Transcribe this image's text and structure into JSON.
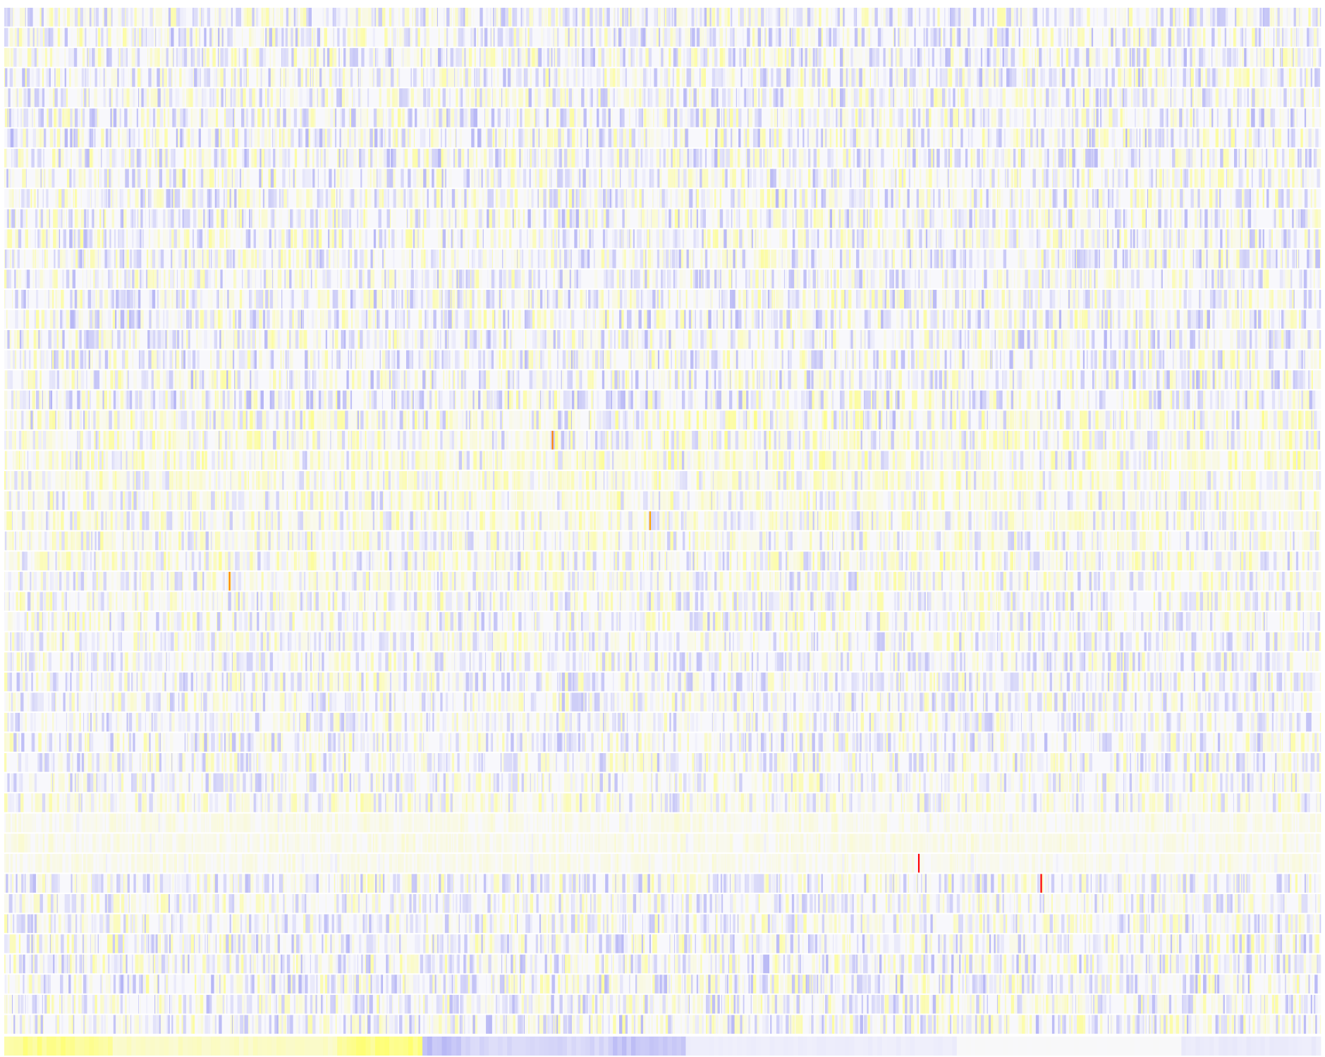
{
  "chart_data": {
    "type": "heatmap",
    "title": "",
    "xlabel": "",
    "ylabel": "",
    "row_count": 51,
    "column_count": 1700,
    "tick_labels": [],
    "legend": "none",
    "grid": false,
    "colors": {
      "low": "#8c8cf0",
      "mid": "#f8f8fc",
      "high": "#ffff66",
      "extreme_mid": "#ffa500",
      "extreme_high": "#ff0000",
      "background": "#ffffff"
    },
    "value_scale": [
      -1,
      1
    ],
    "row_intensity": [
      0.55,
      0.6,
      0.62,
      0.6,
      0.58,
      0.6,
      0.62,
      0.6,
      0.58,
      0.6,
      0.62,
      0.6,
      0.58,
      0.55,
      0.6,
      0.62,
      0.6,
      0.58,
      0.6,
      0.62,
      0.6,
      0.55,
      0.5,
      0.45,
      0.48,
      0.5,
      0.5,
      0.55,
      0.5,
      0.52,
      0.55,
      0.5,
      0.5,
      0.52,
      0.5,
      0.5,
      0.55,
      0.52,
      0.5,
      0.45,
      0.12,
      0.12,
      0.12,
      0.55,
      0.5,
      0.55,
      0.6,
      0.6,
      0.62,
      0.58,
      0.6
    ],
    "row_bias": [
      0,
      0,
      0,
      0,
      0,
      0,
      0,
      0,
      0,
      0,
      0,
      0,
      0,
      0,
      0,
      0,
      0,
      0,
      0,
      0,
      0.15,
      0.2,
      0.25,
      0.25,
      0.2,
      0.2,
      0.15,
      0.15,
      0.1,
      0.1,
      0.05,
      0.05,
      0,
      0,
      0,
      0,
      0,
      0,
      0.05,
      0.15,
      0.2,
      0.2,
      0.2,
      0,
      0,
      0,
      0,
      0,
      0,
      0,
      0
    ],
    "highlights": [
      {
        "row": 21,
        "column": 707,
        "value": 1.6
      },
      {
        "row": 25,
        "column": 833,
        "value": 1.5
      },
      {
        "row": 28,
        "column": 290,
        "value": 1.6
      },
      {
        "row": 42,
        "column": 1180,
        "value": 2.0
      },
      {
        "row": 43,
        "column": 1338,
        "value": 2.0
      }
    ],
    "footer_blocks": [
      {
        "span": [
          0,
          140
        ],
        "value": 0.7
      },
      {
        "span": [
          140,
          430
        ],
        "value": 0.35
      },
      {
        "span": [
          430,
          540
        ],
        "value": 0.75
      },
      {
        "span": [
          540,
          590
        ],
        "value": -0.5
      },
      {
        "span": [
          590,
          780
        ],
        "value": -0.3
      },
      {
        "span": [
          780,
          880
        ],
        "value": -0.45
      },
      {
        "span": [
          880,
          1230
        ],
        "value": -0.1
      },
      {
        "span": [
          1230,
          1520
        ],
        "value": 0.02
      },
      {
        "span": [
          1520,
          1700
        ],
        "value": -0.12
      }
    ]
  }
}
